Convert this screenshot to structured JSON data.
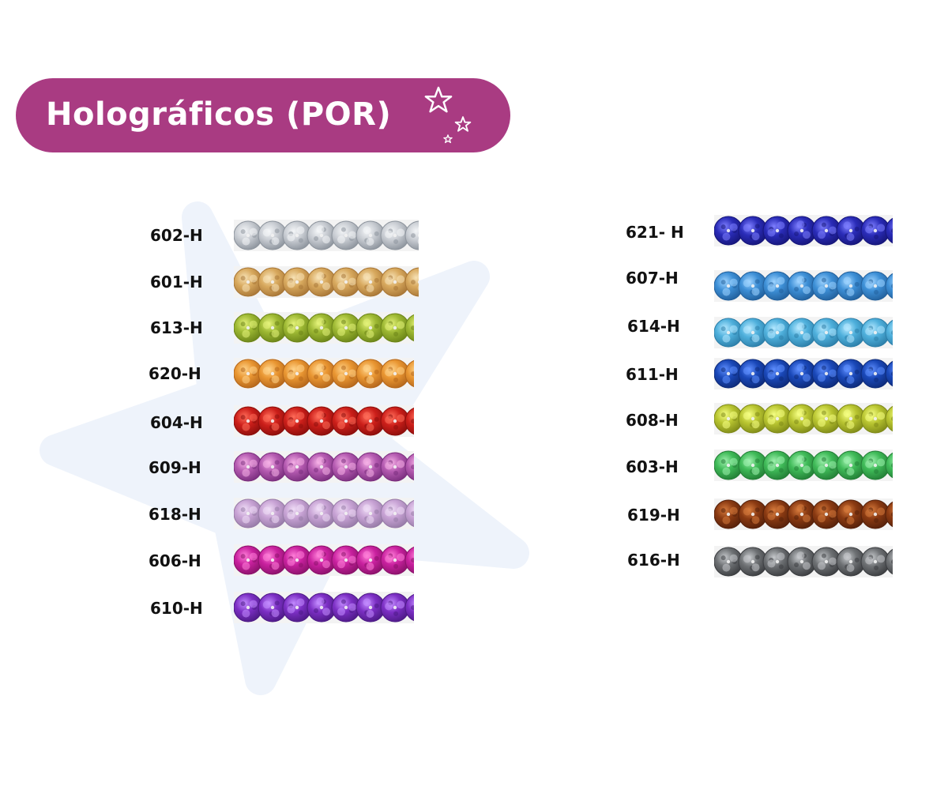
{
  "title": "Holográficos (POR)",
  "colors": {
    "title_pill": "#a93b82",
    "background_star": "#eef3fb"
  },
  "decorations": [
    "star-icon",
    "star-icon",
    "star-icon"
  ],
  "columns": [
    {
      "items": [
        {
          "code": "602-H",
          "color": "#c9cdd3",
          "highlight": "#f4f6f8",
          "shadow": "#8c939c"
        },
        {
          "code": "601-H",
          "color": "#d8a95e",
          "highlight": "#f7e2b6",
          "shadow": "#a87636"
        },
        {
          "code": "613-H",
          "color": "#9db833",
          "highlight": "#e4f27a",
          "shadow": "#6b8418"
        },
        {
          "code": "620-H",
          "color": "#e99632",
          "highlight": "#ffd38a",
          "shadow": "#b4661a"
        },
        {
          "code": "604-H",
          "color": "#cc1f1a",
          "highlight": "#ff6d5a",
          "shadow": "#8c0e0c"
        },
        {
          "code": "609-H",
          "color": "#b45ab0",
          "highlight": "#f5b0e6",
          "shadow": "#7a2e7e"
        },
        {
          "code": "618-H",
          "color": "#c7a2d4",
          "highlight": "#efdcf6",
          "shadow": "#967aa6"
        },
        {
          "code": "606-H",
          "color": "#c9219f",
          "highlight": "#ff7fd8",
          "shadow": "#8a116a"
        },
        {
          "code": "610-H",
          "color": "#7c2fc4",
          "highlight": "#c38cff",
          "shadow": "#4d1a86"
        }
      ]
    },
    {
      "items": [
        {
          "code": "621- H",
          "color": "#2a2cb8",
          "highlight": "#7e7fff",
          "shadow": "#16167a"
        },
        {
          "code": "607-H",
          "color": "#3d8fd6",
          "highlight": "#9fd4ff",
          "shadow": "#22609c"
        },
        {
          "code": "614-H",
          "color": "#4fb0dc",
          "highlight": "#b4e8ff",
          "shadow": "#2c7ea8"
        },
        {
          "code": "611-H",
          "color": "#1a48b8",
          "highlight": "#5f8fff",
          "shadow": "#0d2a78"
        },
        {
          "code": "608-H",
          "color": "#b9c531",
          "highlight": "#f5ff84",
          "shadow": "#7f8a18"
        },
        {
          "code": "603-H",
          "color": "#3fba58",
          "highlight": "#9ff0ae",
          "shadow": "#237e36"
        },
        {
          "code": "619-H",
          "color": "#8a3a12",
          "highlight": "#d67a3c",
          "shadow": "#55200a"
        },
        {
          "code": "616-H",
          "color": "#6e7174",
          "highlight": "#c6c9cc",
          "shadow": "#3b3d40"
        }
      ]
    }
  ]
}
